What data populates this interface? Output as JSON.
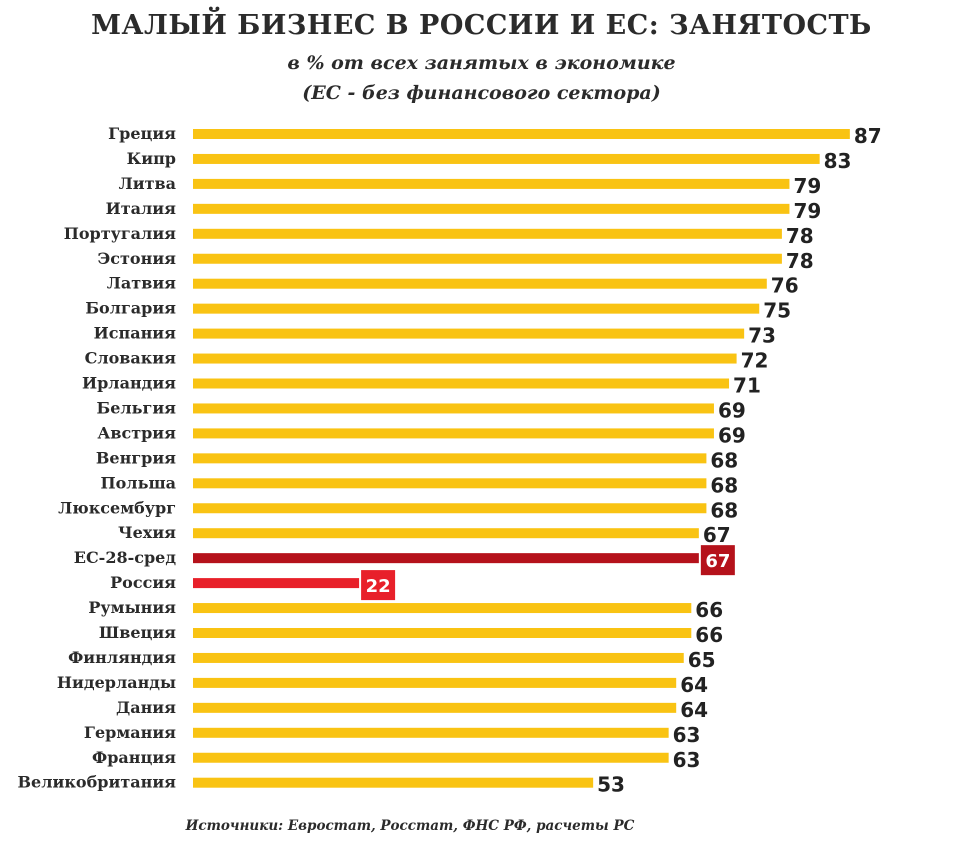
{
  "header": {
    "title": "МАЛЫЙ БИЗНЕС В РОССИИ И ЕС: ЗАНЯТОСТЬ",
    "subtitle_line1": "в %  от всех занятых в экономике",
    "subtitle_line2": "(ЕС - без финансового сектора)"
  },
  "footer": {
    "source": "Источники: Евростат, Росстат, ФНС РФ, расчеты РС"
  },
  "colors": {
    "default_bar": "#f9c313",
    "eu_average_bar": "#b5121b",
    "russia_bar": "#e8202a"
  },
  "chart_data": {
    "type": "bar",
    "orientation": "horizontal",
    "categories": [
      "Греция",
      "Кипр",
      "Литва",
      "Италия",
      "Португалия",
      "Эстония",
      "Латвия",
      "Болгария",
      "Испания",
      "Словакия",
      "Ирландия",
      "Бельгия",
      "Австрия",
      "Венгрия",
      "Польша",
      "Люксембург",
      "Чехия",
      "ЕС-28-сред",
      "Россия",
      "Румыния",
      "Швеция",
      "Финляндия",
      "Нидерланды",
      "Дания",
      "Германия",
      "Франция",
      "Великобритания"
    ],
    "values": [
      87,
      83,
      79,
      79,
      78,
      78,
      76,
      75,
      73,
      72,
      71,
      69,
      69,
      68,
      68,
      68,
      67,
      67,
      22,
      66,
      66,
      65,
      64,
      64,
      63,
      63,
      53
    ],
    "highlight": {
      "ЕС-28-сред": "eu_average_bar",
      "Россия": "russia_bar"
    },
    "xlim": [
      0,
      87
    ],
    "grid": false,
    "legend": "none"
  }
}
